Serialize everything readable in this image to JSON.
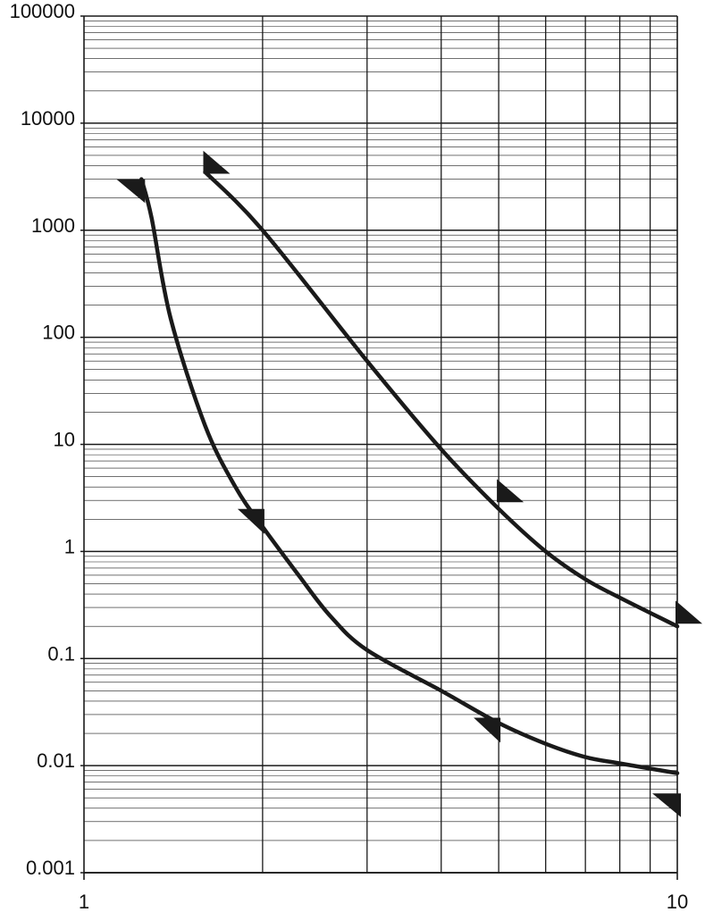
{
  "chart_data": {
    "type": "line",
    "title": "",
    "xlabel": "",
    "ylabel": "",
    "x_scale": "log",
    "y_scale": "log",
    "xlim": [
      1,
      10
    ],
    "ylim": [
      0.001,
      100000
    ],
    "grid": true,
    "x_tick_labels": [
      "1",
      "10"
    ],
    "x_tick_values": [
      1,
      10
    ],
    "y_tick_labels": [
      "0.001",
      "0.01",
      "0.1",
      "1",
      "10",
      "100",
      "1000",
      "10000",
      "100000"
    ],
    "y_tick_values": [
      0.001,
      0.01,
      0.1,
      1,
      10,
      100,
      1000,
      10000,
      100000
    ],
    "line_color": "#1a1a1a",
    "series": [
      {
        "x": [
          1.25,
          1.3,
          1.4,
          1.6,
          1.8,
          2.0,
          2.3,
          2.6,
          3.0,
          4.0,
          5.0,
          6.0,
          7.0,
          8.0,
          10.0
        ],
        "y": [
          3000,
          1300,
          150,
          15,
          4,
          1.7,
          0.6,
          0.25,
          0.12,
          0.05,
          0.025,
          0.016,
          0.012,
          0.0105,
          0.0085
        ]
      },
      {
        "x": [
          1.6,
          2.0,
          3.0,
          4.0,
          5.0,
          6.0,
          7.0,
          8.0,
          10.0
        ],
        "y": [
          3500,
          1000,
          60,
          9,
          2.5,
          1.0,
          0.55,
          0.37,
          0.2
        ]
      }
    ],
    "markers": [
      {
        "x": 1.25,
        "y": 3000,
        "shape": "wedge-down-right"
      },
      {
        "x": 1.6,
        "y": 3500,
        "shape": "wedge-up-left"
      },
      {
        "x": 2.0,
        "y": 2.5,
        "shape": "wedge-down-left"
      },
      {
        "x": 5.0,
        "y": 3.0,
        "shape": "wedge-up-left"
      },
      {
        "x": 5.0,
        "y": 0.028,
        "shape": "wedge-down-left"
      },
      {
        "x": 10.0,
        "y": 0.22,
        "shape": "wedge-up-left"
      },
      {
        "x": 10.0,
        "y": 0.0055,
        "shape": "wedge-down-right"
      }
    ]
  }
}
